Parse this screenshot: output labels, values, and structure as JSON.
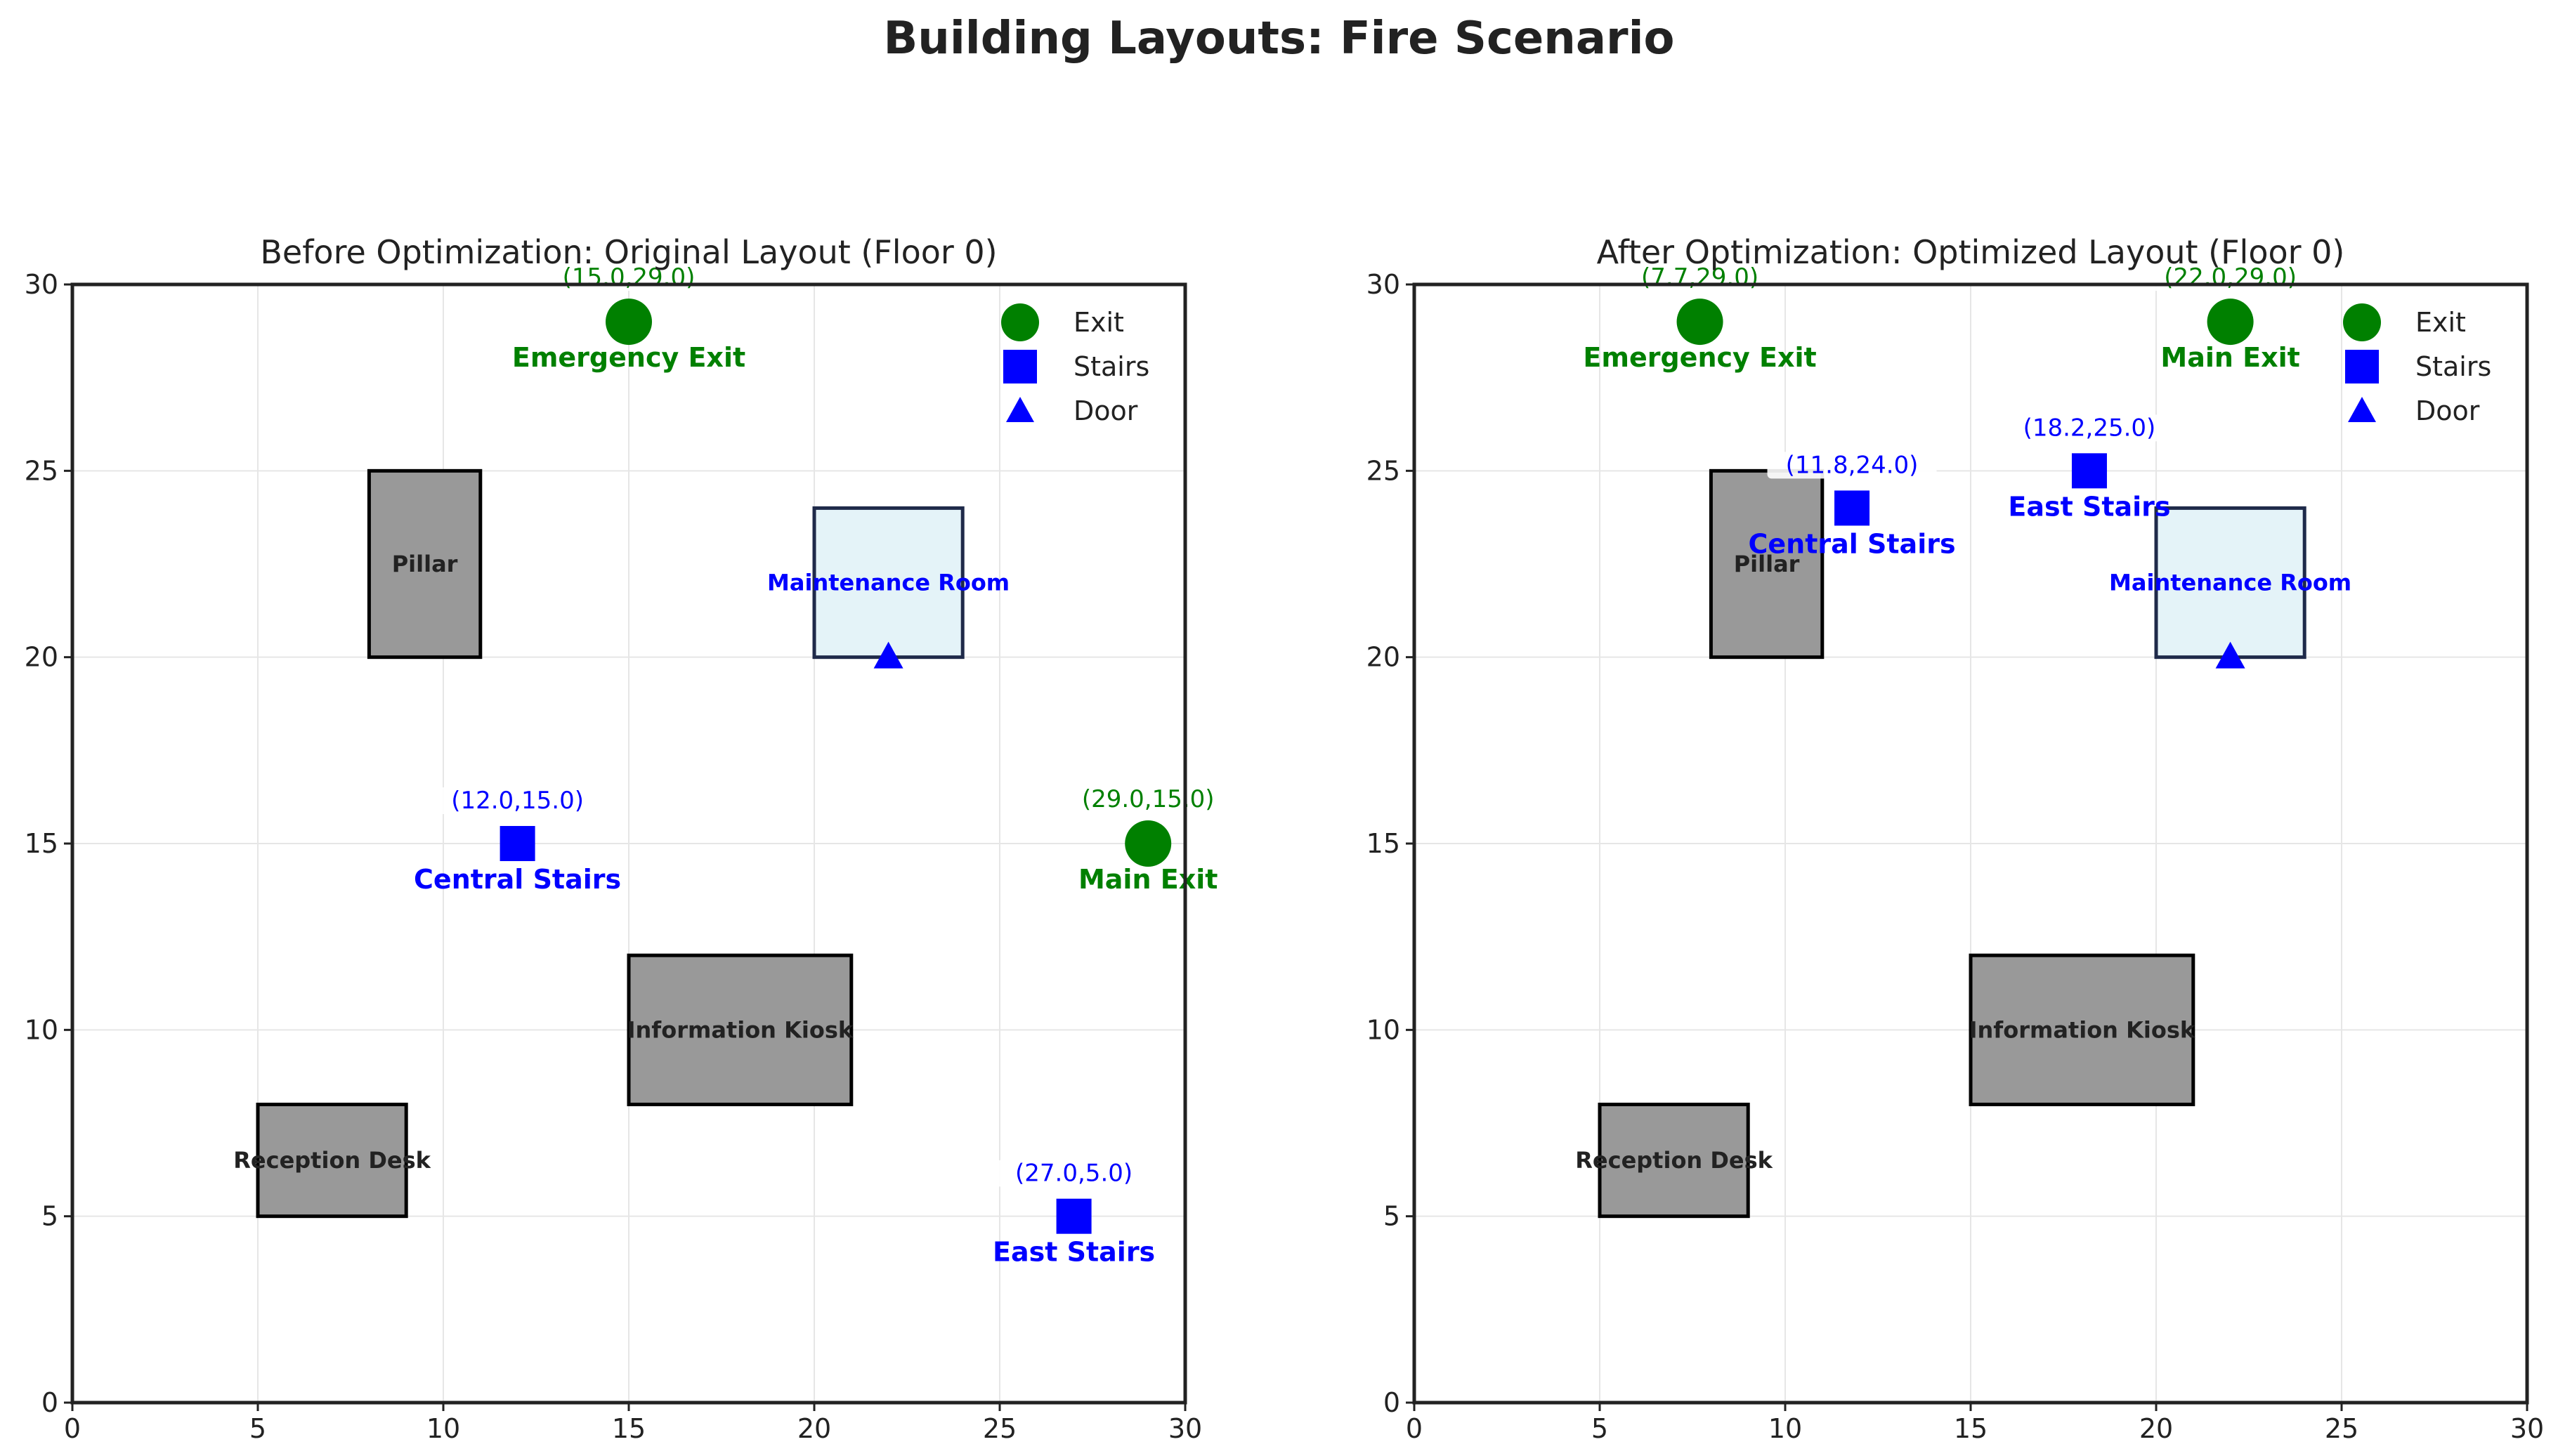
{
  "figure_title": "Building Layouts: Fire Scenario",
  "colors": {
    "exit": "#008000",
    "stairs": "#0000ff",
    "door": "#0000ff",
    "obstacle": "#999999",
    "room_fill": "#e4f3f8",
    "room_stroke": "#1f2a4a",
    "grid": "#e6e6e6"
  },
  "legend": {
    "placement": "upper-right",
    "entries": [
      {
        "label": "Exit",
        "marker": "circle"
      },
      {
        "label": "Stairs",
        "marker": "square"
      },
      {
        "label": "Door",
        "marker": "triangle"
      }
    ]
  },
  "chart_data": [
    {
      "type": "scatter",
      "title": "Before Optimization: Original Layout (Floor 0)",
      "xlim": [
        0,
        30
      ],
      "ylim": [
        0,
        30
      ],
      "xticks": [
        0,
        5,
        10,
        15,
        20,
        25,
        30
      ],
      "yticks": [
        0,
        5,
        10,
        15,
        20,
        25,
        30
      ],
      "grid": true,
      "obstacles": [
        {
          "name": "Pillar",
          "x": 8,
          "y": 20,
          "w": 3,
          "h": 5
        },
        {
          "name": "Information Kiosk",
          "x": 15,
          "y": 8,
          "w": 6,
          "h": 4
        },
        {
          "name": "Reception Desk",
          "x": 5,
          "y": 5,
          "w": 4,
          "h": 3
        }
      ],
      "rooms": [
        {
          "name": "Maintenance Room",
          "x": 20,
          "y": 20,
          "w": 4,
          "h": 4
        }
      ],
      "doors": [
        {
          "x": 22,
          "y": 20
        }
      ],
      "exits": [
        {
          "name": "Emergency Exit",
          "x": 15.0,
          "y": 29.0,
          "coord": "(15.0,29.0)"
        },
        {
          "name": "Main Exit",
          "x": 29.0,
          "y": 15.0,
          "coord": "(29.0,15.0)"
        }
      ],
      "stairs": [
        {
          "name": "Central Stairs",
          "x": 12.0,
          "y": 15.0,
          "coord": "(12.0,15.0)"
        },
        {
          "name": "East Stairs",
          "x": 27.0,
          "y": 5.0,
          "coord": "(27.0,5.0)"
        }
      ]
    },
    {
      "type": "scatter",
      "title": "After Optimization: Optimized Layout (Floor 0)",
      "xlim": [
        0,
        30
      ],
      "ylim": [
        0,
        30
      ],
      "xticks": [
        0,
        5,
        10,
        15,
        20,
        25,
        30
      ],
      "yticks": [
        0,
        5,
        10,
        15,
        20,
        25,
        30
      ],
      "grid": true,
      "obstacles": [
        {
          "name": "Pillar",
          "x": 8,
          "y": 20,
          "w": 3,
          "h": 5
        },
        {
          "name": "Information Kiosk",
          "x": 15,
          "y": 8,
          "w": 6,
          "h": 4
        },
        {
          "name": "Reception Desk",
          "x": 5,
          "y": 5,
          "w": 4,
          "h": 3
        }
      ],
      "rooms": [
        {
          "name": "Maintenance Room",
          "x": 20,
          "y": 20,
          "w": 4,
          "h": 4
        }
      ],
      "doors": [
        {
          "x": 22,
          "y": 20
        }
      ],
      "exits": [
        {
          "name": "Emergency Exit",
          "x": 7.7,
          "y": 29.0,
          "coord": "(7.7,29.0)"
        },
        {
          "name": "Main Exit",
          "x": 22.0,
          "y": 29.0,
          "coord": "(22.0,29.0)"
        }
      ],
      "stairs": [
        {
          "name": "Central Stairs",
          "x": 11.8,
          "y": 24.0,
          "coord": "(11.8,24.0)"
        },
        {
          "name": "East Stairs",
          "x": 18.2,
          "y": 25.0,
          "coord": "(18.2,25.0)"
        }
      ]
    }
  ]
}
